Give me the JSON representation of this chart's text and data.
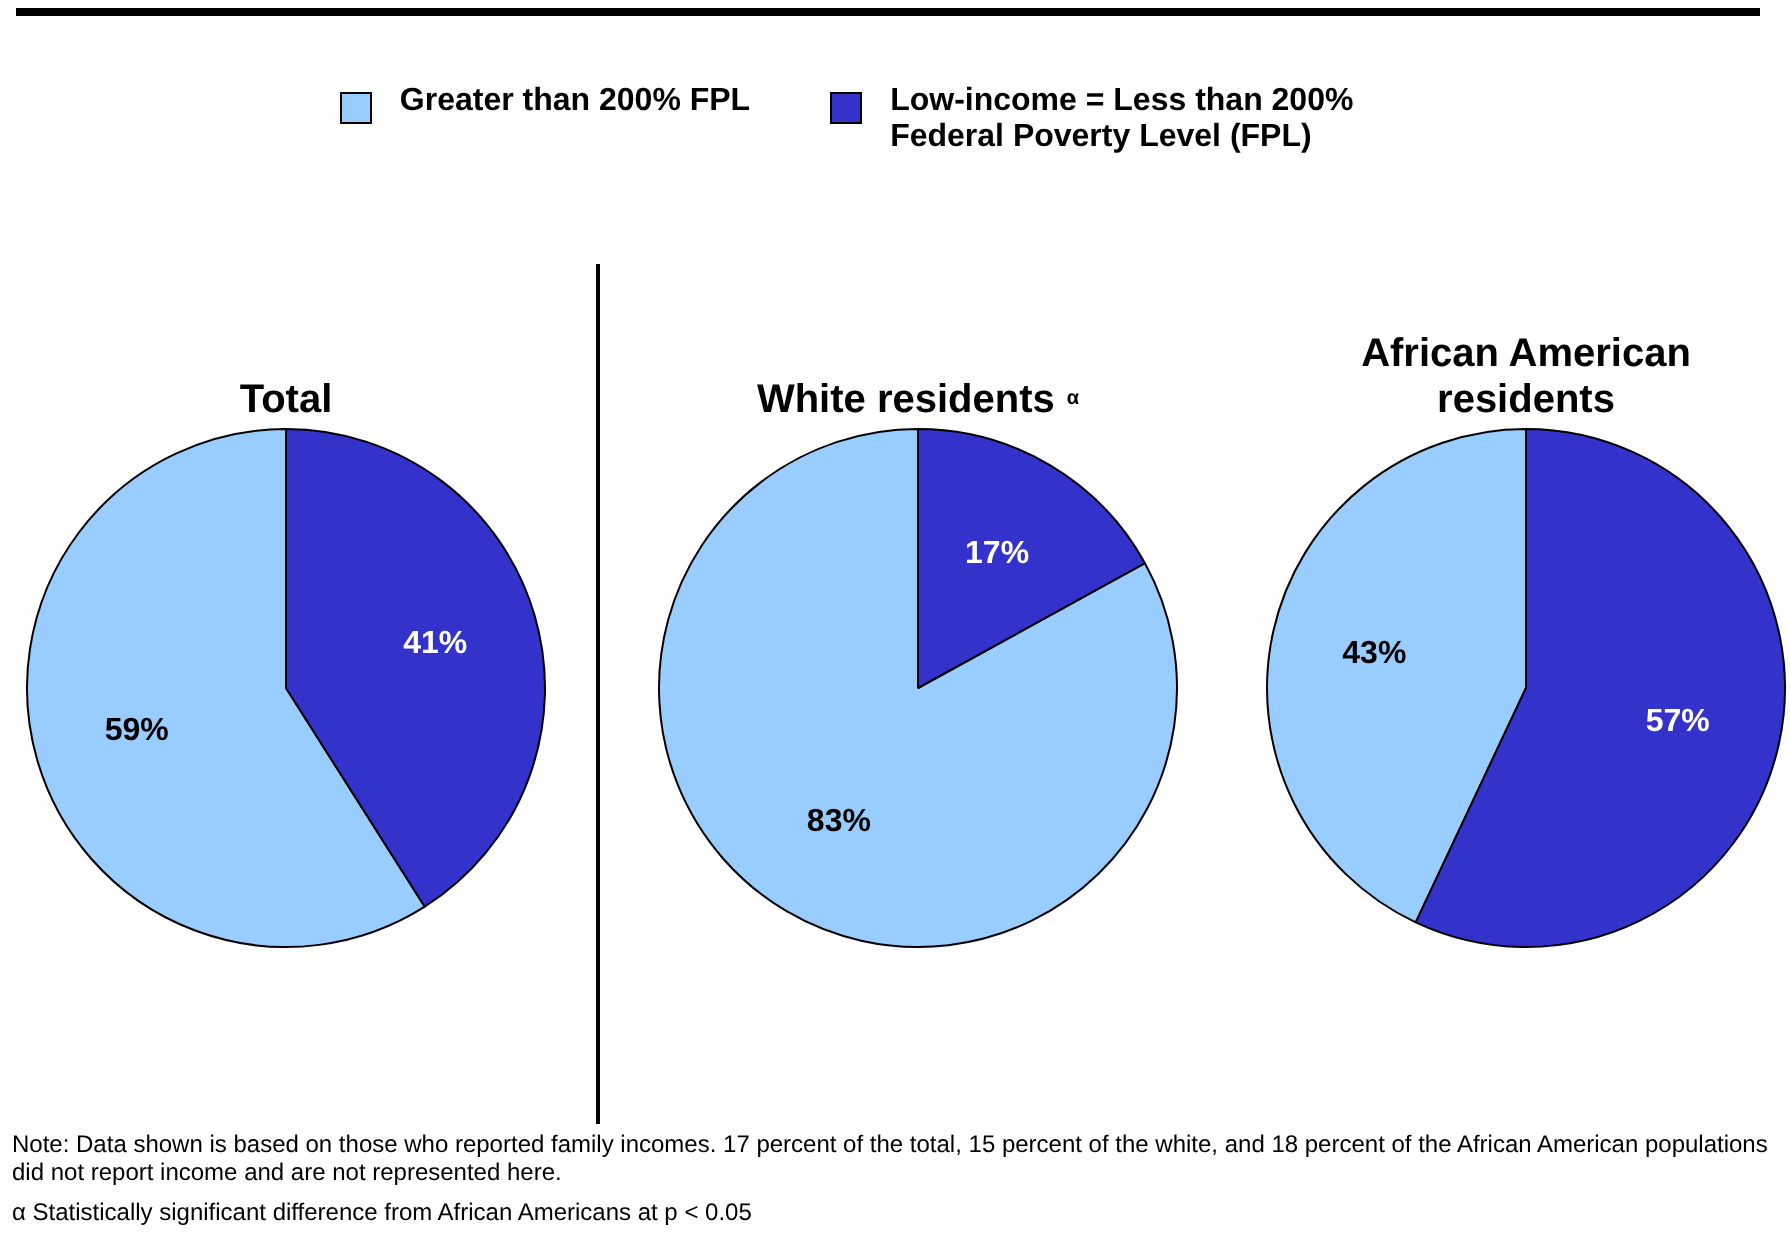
{
  "chart_data": [
    {
      "type": "pie",
      "title": "Total",
      "categories": [
        "Greater than 200% FPL",
        "Low-income = Less than 200% Federal Poverty Level (FPL)"
      ],
      "values": [
        59,
        41
      ],
      "value_labels": [
        "59%",
        "41%"
      ],
      "colors": [
        "#99ccff",
        "#3333cc"
      ],
      "legend": "top",
      "annotations": [
        "Note: Data shown is based on those who reported family incomes.  17 percent of the total, 15 percent of the white, and 18 percent of the African American populations did not report income and are not represented here.",
        "α Statistically significant difference from African Americans at p < 0.05"
      ]
    },
    {
      "type": "pie",
      "title": "White residents$^{α}$",
      "values": [
        83,
        17
      ],
      "value_labels": [
        "83%",
        "17%"
      ],
      "colors": [
        "#99ccff",
        "#3333cc"
      ]
    },
    {
      "type": "pie",
      "title": "African American residents",
      "values": [
        43,
        57
      ],
      "value_labels": [
        "43%",
        "57%"
      ],
      "colors": [
        "#99ccff",
        "#3333cc"
      ]
    }
  ]
}
